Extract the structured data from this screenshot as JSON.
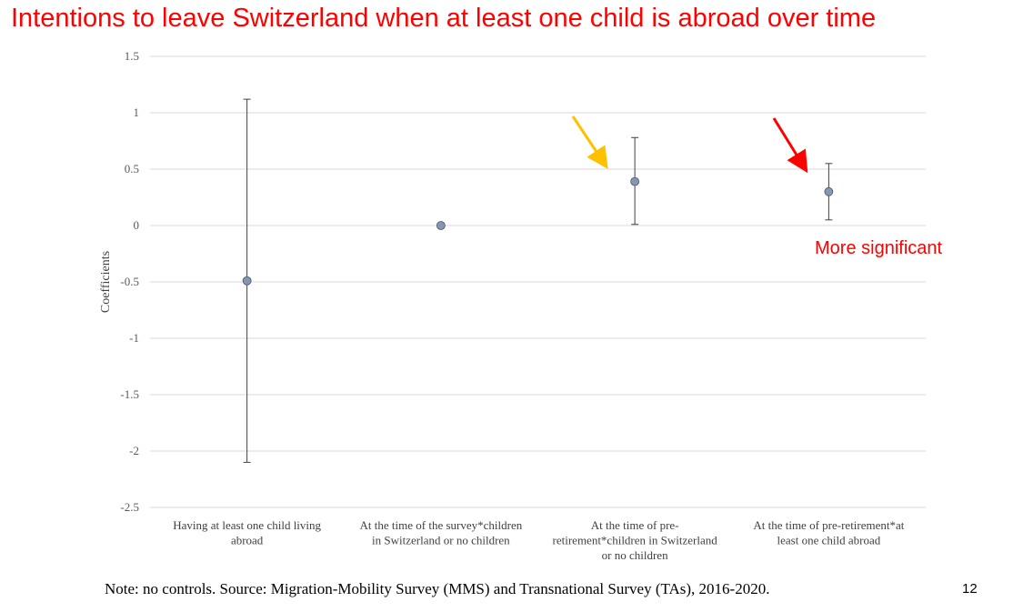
{
  "slide": {
    "title": "Intentions to leave Switzerland when at least one child is abroad over time",
    "note": "Note: no controls. Source: Migration-Mobility Survey (MMS) and Transnational Survey (TAs), 2016-2020.",
    "page_number": "12"
  },
  "chart_data": {
    "type": "scatter",
    "title": "",
    "ylabel": "Coefficients",
    "xlabel": "",
    "ylim": [
      -2.5,
      1.5
    ],
    "yticks": [
      "1.5",
      "1",
      "0.5",
      "0",
      "-0.5",
      "-1",
      "-1.5",
      "-2",
      "-2.5"
    ],
    "ytick_values": [
      1.5,
      1,
      0.5,
      0,
      -0.5,
      -1,
      -1.5,
      -2,
      -2.5
    ],
    "grid": true,
    "categories": [
      [
        "Having at least one child living",
        "abroad"
      ],
      [
        "At the time of the survey*children",
        "in Switzerland or no children"
      ],
      [
        "At the time of pre-",
        "retirement*children in Switzerland",
        "or no children"
      ],
      [
        "At the time of pre-retirement*at",
        "least one child abroad"
      ]
    ],
    "points": [
      {
        "value": -0.49,
        "ci_low": -2.1,
        "ci_high": 1.12
      },
      {
        "value": 0.0,
        "ci_low": null,
        "ci_high": null
      },
      {
        "value": 0.39,
        "ci_low": 0.01,
        "ci_high": 0.78
      },
      {
        "value": 0.3,
        "ci_low": 0.05,
        "ci_high": 0.55
      }
    ],
    "marker_color": "#8496b0",
    "annotations": [
      {
        "text": "",
        "kind": "arrow",
        "color": "#ffc000",
        "target_category": 2
      },
      {
        "text": "",
        "kind": "arrow",
        "color": "#ff0000",
        "target_category": 3
      },
      {
        "text": "More significant",
        "kind": "label",
        "color": "#ff0000"
      }
    ]
  }
}
